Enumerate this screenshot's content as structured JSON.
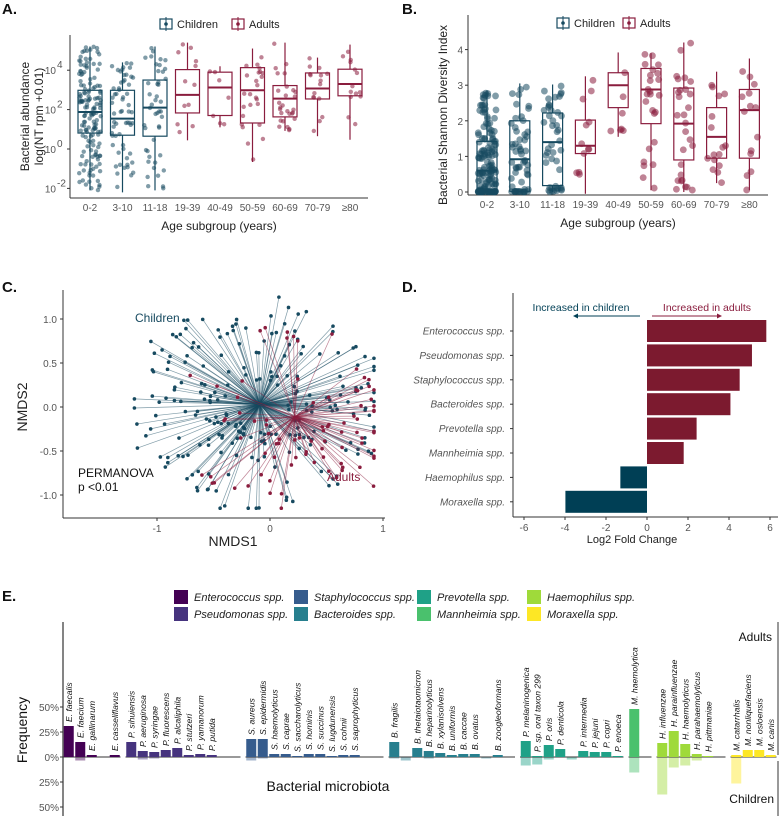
{
  "panels": {
    "A": "A.",
    "B": "B.",
    "C": "C.",
    "D": "D.",
    "E": "E."
  },
  "colors": {
    "children": "#174a60",
    "adults": "#8a1d3e",
    "d_adults": "#7c1a2f",
    "d_children": "#003f55",
    "axis": "#333333"
  },
  "chart_data": [
    {
      "id": "A",
      "type": "box",
      "xlabel": "Age subgroup (years)",
      "ylabel": [
        "Bacterial abundance",
        "log(NT rpm +0.01)"
      ],
      "yscale": "log10",
      "yticks": [
        {
          "v": 4,
          "base": "10",
          "exp": "4"
        },
        {
          "v": 2,
          "base": "10",
          "exp": "2"
        },
        {
          "v": 0,
          "base": "10",
          "exp": "0"
        },
        {
          "v": -2,
          "base": "10",
          "exp": "-2"
        }
      ],
      "legend": [
        "Children",
        "Adults"
      ],
      "legend_position": "top",
      "categories": [
        "0-2",
        "3-10",
        "11-18",
        "19-39",
        "40-49",
        "50-59",
        "60-69",
        "70-79",
        "≥80"
      ],
      "group": [
        "Children",
        "Children",
        "Children",
        "Adults",
        "Adults",
        "Adults",
        "Adults",
        "Adults",
        "Adults"
      ],
      "stats_log10": [
        {
          "lo": -2.1,
          "q1": 0.81,
          "median": 1.88,
          "q3": 2.98,
          "hi": 5.2,
          "n": 150
        },
        {
          "lo": -2.2,
          "q1": 0.7,
          "median": 1.54,
          "q3": 2.98,
          "hi": 4.4,
          "n": 60
        },
        {
          "lo": -2.1,
          "q1": 0.65,
          "median": 2.1,
          "q3": 3.5,
          "hi": 5.2,
          "n": 45
        },
        {
          "lo": 0.44,
          "q1": 1.83,
          "median": 2.75,
          "q3": 4.03,
          "hi": 5.4,
          "n": 12
        },
        {
          "lo": 1.1,
          "q1": 1.7,
          "median": 3.12,
          "q3": 3.9,
          "hi": 4.2,
          "n": 7
        },
        {
          "lo": -0.66,
          "q1": 1.32,
          "median": 2.98,
          "q3": 4.13,
          "hi": 5.1,
          "n": 25
        },
        {
          "lo": 0.92,
          "q1": 1.63,
          "median": 2.56,
          "q3": 3.22,
          "hi": 5.4,
          "n": 28
        },
        {
          "lo": 0.65,
          "q1": 2.54,
          "median": 3.07,
          "q3": 3.86,
          "hi": 4.64,
          "n": 16
        },
        {
          "lo": 0.47,
          "q1": 2.7,
          "median": 3.3,
          "q3": 4.05,
          "hi": 5.3,
          "n": 14
        }
      ]
    },
    {
      "id": "B",
      "type": "box",
      "xlabel": "Age subgroup (years)",
      "ylabel": "Bacterial Shannon Diversity Index",
      "yticks": [
        0,
        1,
        2,
        3,
        4
      ],
      "ylim": [
        0,
        4.9
      ],
      "legend": [
        "Children",
        "Adults"
      ],
      "legend_position": "top",
      "categories": [
        "0-2",
        "3-10",
        "11-18",
        "19-39",
        "40-49",
        "50-59",
        "60-69",
        "70-79",
        "≥80"
      ],
      "group": [
        "Children",
        "Children",
        "Children",
        "Adults",
        "Adults",
        "Adults",
        "Adults",
        "Adults",
        "Adults"
      ],
      "stats": [
        {
          "lo": 0,
          "q1": 0.02,
          "median": 0.6,
          "q3": 1.42,
          "hi": 2.85,
          "n": 150
        },
        {
          "lo": 0,
          "q1": 0.02,
          "median": 0.92,
          "q3": 2.0,
          "hi": 3.05,
          "n": 60
        },
        {
          "lo": 0,
          "q1": 0.18,
          "median": 1.4,
          "q3": 2.22,
          "hi": 3.02,
          "n": 45
        },
        {
          "lo": -0.05,
          "q1": 1.08,
          "median": 1.3,
          "q3": 2.02,
          "hi": 3.25,
          "n": 12
        },
        {
          "lo": 1.55,
          "q1": 2.37,
          "median": 3.0,
          "q3": 3.35,
          "hi": 3.92,
          "n": 7
        },
        {
          "lo": 0.05,
          "q1": 1.92,
          "median": 2.88,
          "q3": 3.47,
          "hi": 3.9,
          "n": 25
        },
        {
          "lo": 0,
          "q1": 0.9,
          "median": 1.92,
          "q3": 2.92,
          "hi": 4.2,
          "n": 28
        },
        {
          "lo": 0.25,
          "q1": 0.95,
          "median": 1.55,
          "q3": 2.37,
          "hi": 3.38,
          "n": 16
        },
        {
          "lo": 0.05,
          "q1": 0.95,
          "median": 2.3,
          "q3": 2.88,
          "hi": 3.75,
          "n": 14
        }
      ]
    },
    {
      "id": "C",
      "type": "scatter",
      "xlabel": "NMDS1",
      "ylabel": "NMDS2",
      "xticks": [
        {
          "v": -1,
          "label": "-1"
        },
        {
          "v": 0,
          "label": "0"
        },
        {
          "v": 1,
          "label": "1"
        }
      ],
      "yticks": [
        {
          "v": 1,
          "label": "1.0"
        },
        {
          "v": 0.5,
          "label": "0.5"
        },
        {
          "v": 0,
          "label": "0.0"
        },
        {
          "v": -0.5,
          "label": "-0.5"
        },
        {
          "v": -1,
          "label": "-1.0"
        }
      ],
      "xlim": [
        -1.8,
        1.02
      ],
      "ylim": [
        -1.25,
        1.38
      ],
      "centroids": {
        "Children": [
          -0.09,
          0.03
        ],
        "Adults": [
          0.22,
          -0.11
        ]
      },
      "n": {
        "Children": 230,
        "Adults": 85
      },
      "annotations": {
        "children": "Children",
        "adults": "Adults",
        "test": "PERMANOVA",
        "p": "p <0.01"
      }
    },
    {
      "id": "D",
      "type": "bar",
      "orientation": "horizontal",
      "xlabel": "Log2 Fold Change",
      "xticks": [
        -6,
        -4,
        -2,
        0,
        2,
        4,
        6
      ],
      "xlim": [
        -6.3,
        6.1
      ],
      "categories": [
        "Enterococcus spp.",
        "Pseudomonas spp.",
        "Staphylococcus spp.",
        "Bacteroides spp.",
        "Prevotella spp.",
        "Mannheimia spp.",
        "Haemophilus spp.",
        "Moraxella spp."
      ],
      "values": [
        5.82,
        5.12,
        4.52,
        4.07,
        2.42,
        1.79,
        -1.3,
        -3.98
      ],
      "annotations": {
        "left": "Increased in children",
        "right": "Increased in adults"
      }
    },
    {
      "id": "E",
      "type": "bar",
      "orientation": "mirrored",
      "ylabel": "Frequency",
      "xlabel": "Bacterial microbiota",
      "yticks": [
        {
          "v": 50,
          "label": "50%"
        },
        {
          "v": 25,
          "label": "25%"
        },
        {
          "v": 0,
          "label": "0%"
        },
        {
          "v": -25,
          "label": "25%"
        },
        {
          "v": -50,
          "label": "50%"
        }
      ],
      "side_labels": {
        "top": "Adults",
        "bottom": "Children"
      },
      "legend": [
        "Enterococcus spp.",
        "Pseudomonas spp.",
        "Staphylococcus spp.",
        "Bacteroides spp.",
        "Prevotella spp.",
        "Mannheimia spp.",
        "Haemophilus spp.",
        "Moraxella spp."
      ],
      "legend_position": "top",
      "groups": [
        {
          "genus": "Enterococcus spp.",
          "color": "#440154",
          "bars": [
            {
              "name": "E. faecalis",
              "adults": 31,
              "children": 0
            },
            {
              "name": "E. faecium",
              "adults": 15,
              "children": 3
            },
            {
              "name": "E. gallinarum",
              "adults": 2,
              "children": 0
            },
            {
              "name": "",
              "adults": 0,
              "children": 0
            },
            {
              "name": "E. casseliflavus",
              "adults": 2,
              "children": 0
            }
          ]
        },
        {
          "genus": "Pseudomonas spp.",
          "color": "#46337e",
          "bars": [
            {
              "name": "P. sihuiensis",
              "adults": 15,
              "children": 0
            },
            {
              "name": "P. aeruginosa",
              "adults": 6,
              "children": 2
            },
            {
              "name": "P. syringae",
              "adults": 5,
              "children": 1
            },
            {
              "name": "P. fluorescens",
              "adults": 7,
              "children": 0
            },
            {
              "name": "P. alcaliphila",
              "adults": 9,
              "children": 0
            },
            {
              "name": "P. stutzeri",
              "adults": 2,
              "children": 0
            },
            {
              "name": "P. yamanorum",
              "adults": 3,
              "children": 0
            },
            {
              "name": "P. putida",
              "adults": 2,
              "children": 0
            },
            {
              "name": "",
              "adults": 0,
              "children": 0
            },
            {
              "name": "",
              "adults": 0,
              "children": 0
            }
          ]
        },
        {
          "genus": "Staphylococcus spp.",
          "color": "#365c8d",
          "bars": [
            {
              "name": "S. aureus",
              "adults": 18,
              "children": 3
            },
            {
              "name": "S. epidermidis",
              "adults": 18,
              "children": 1
            },
            {
              "name": "S. haemolyticus",
              "adults": 3,
              "children": 0
            },
            {
              "name": "S. caprae",
              "adults": 3,
              "children": 0
            },
            {
              "name": "S. saccharolyticus",
              "adults": 1,
              "children": 0
            },
            {
              "name": "S. hominis",
              "adults": 3,
              "children": 0
            },
            {
              "name": "S. succinus",
              "adults": 3,
              "children": 0
            },
            {
              "name": "S. lugdunensis",
              "adults": 1,
              "children": 0
            },
            {
              "name": "S. cohnii",
              "adults": 2,
              "children": 0
            },
            {
              "name": "S. saprophyticus",
              "adults": 2,
              "children": 0
            },
            {
              "name": "",
              "adults": 0,
              "children": 0
            },
            {
              "name": "",
              "adults": 0,
              "children": 0
            }
          ]
        },
        {
          "genus": "Bacteroides spp.",
          "color": "#277f8e",
          "bars": [
            {
              "name": "B. fragilis",
              "adults": 15,
              "children": 1
            },
            {
              "name": "",
              "adults": 0,
              "children": 3
            },
            {
              "name": "B. thetaiotaomicron",
              "adults": 9,
              "children": 0
            },
            {
              "name": "B. heparinolyticus",
              "adults": 6,
              "children": 1
            },
            {
              "name": "B. xylanisolvens",
              "adults": 4,
              "children": 0
            },
            {
              "name": "B. uniformis",
              "adults": 2,
              "children": 0
            },
            {
              "name": "B. caccae",
              "adults": 3,
              "children": 0
            },
            {
              "name": "B. ovatus",
              "adults": 3,
              "children": 0
            },
            {
              "name": "",
              "adults": 0,
              "children": 1
            },
            {
              "name": "B. zoogleoformans",
              "adults": 2,
              "children": 0
            },
            {
              "name": "",
              "adults": 0,
              "children": 0
            }
          ]
        },
        {
          "genus": "Prevotella spp.",
          "color": "#1fa187",
          "bars": [
            {
              "name": "P. melaninogenica",
              "adults": 16,
              "children": 8
            },
            {
              "name": "P. sp. oral taxon 299",
              "adults": 1,
              "children": 7
            },
            {
              "name": "P. oris",
              "adults": 12,
              "children": 2
            },
            {
              "name": "P. denticola",
              "adults": 8,
              "children": 0
            },
            {
              "name": "",
              "adults": 0,
              "children": 2
            },
            {
              "name": "P. intermedia",
              "adults": 6,
              "children": 0
            },
            {
              "name": "P. jejuni",
              "adults": 5,
              "children": 0
            },
            {
              "name": "P. copri",
              "adults": 5,
              "children": 0
            },
            {
              "name": "P. enoeca",
              "adults": 1,
              "children": 0
            }
          ]
        },
        {
          "genus": "Mannheimia spp.",
          "color": "#4ac16d",
          "bars": [
            {
              "name": "M. haemolytica",
              "adults": 48,
              "children": 15
            },
            {
              "name": "",
              "adults": 0,
              "children": 0
            }
          ]
        },
        {
          "genus": "Haemophilus spp.",
          "color": "#9fda3a",
          "bars": [
            {
              "name": "H. influenzae",
              "adults": 14,
              "children": 37
            },
            {
              "name": "H. parainfluenzae",
              "adults": 26,
              "children": 10
            },
            {
              "name": "H. haemolyticus",
              "adults": 13,
              "children": 8
            },
            {
              "name": "H. parahaemolyticus",
              "adults": 3,
              "children": 3
            },
            {
              "name": "H. pittmaniae",
              "adults": 1,
              "children": 0
            },
            {
              "name": "",
              "adults": 0,
              "children": 0
            }
          ]
        },
        {
          "genus": "Moraxella spp.",
          "color": "#fde725",
          "bars": [
            {
              "name": "M. catarrhalis",
              "adults": 2,
              "children": 26
            },
            {
              "name": "M. nonliquefaciens",
              "adults": 7,
              "children": 0
            },
            {
              "name": "M. osloensis",
              "adults": 7,
              "children": 0
            },
            {
              "name": "M. canis",
              "adults": 2,
              "children": 0
            }
          ]
        }
      ]
    }
  ]
}
